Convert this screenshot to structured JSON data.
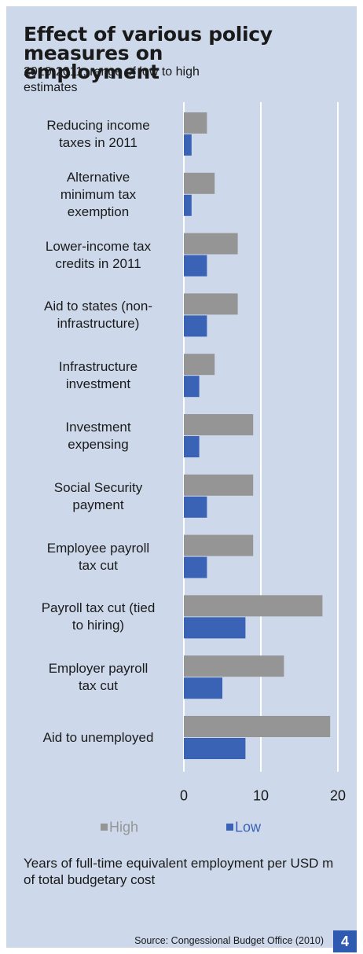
{
  "chart_data": {
    "type": "hbar",
    "title": "Effect of various policy measures on employment",
    "subtitle": "2010-2011, range of low to high estimates",
    "categories": [
      "Reducing income\ntaxes in 2011",
      "Alternative\nminimum tax\nexemption",
      "Lower-income tax\ncredits in 2011",
      "Aid to states (non-\ninfrastructure)",
      "Infrastructure\ninvestment",
      "Investment\nexpensing",
      "Social Security\npayment",
      "Employee payroll\ntax cut",
      "Payroll tax cut (tied\nto hiring)",
      "Employer payroll\ntax cut",
      "Aid to unemployed"
    ],
    "series": [
      {
        "name": "High",
        "color": "#959595",
        "values": [
          3,
          4,
          7,
          7,
          4,
          9,
          9,
          9,
          18,
          13,
          19
        ]
      },
      {
        "name": "Low",
        "color": "#3a62b5",
        "values": [
          1,
          1,
          3,
          3,
          2,
          2,
          3,
          3,
          8,
          5,
          8
        ]
      }
    ],
    "xlim": [
      0,
      20
    ],
    "xticks": [
      0,
      10,
      20
    ],
    "grid": true,
    "legend": "bottom",
    "xlabel": "Years of full-time equivalent employment per USD m of total budgetary cost",
    "source": "Source: Congessional Budget Office (2010)",
    "page_number": "4"
  }
}
